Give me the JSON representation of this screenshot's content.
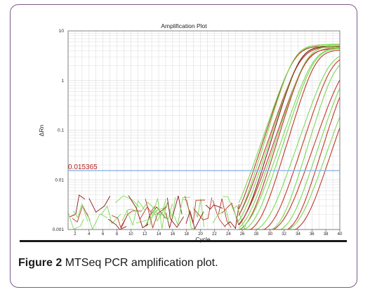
{
  "figure": {
    "caption_label": "Figure 2",
    "caption_text": "MTSeq PCR amplification plot."
  },
  "colors": {
    "green": "#7ed957",
    "red": "#c0392b",
    "darkred": "#8b1a1a",
    "threshold": "#8fb4e3",
    "grid": "#dddddd"
  },
  "chart_data": {
    "type": "line",
    "title": "Amplification Plot",
    "xlabel": "Cycle",
    "ylabel": "ΔRn",
    "xlim": [
      1,
      40
    ],
    "ylim": [
      0.001,
      10
    ],
    "yscale": "log",
    "x_ticks": [
      2,
      4,
      6,
      8,
      10,
      12,
      14,
      16,
      18,
      20,
      22,
      24,
      26,
      28,
      30,
      32,
      34,
      36,
      38,
      40
    ],
    "y_ticks": [
      {
        "value": 10,
        "label": "10"
      },
      {
        "value": 1,
        "label": "1"
      },
      {
        "value": 0.1,
        "label": "0.1"
      },
      {
        "value": 0.01,
        "label": "0.01"
      },
      {
        "value": 0.001,
        "label": "0.001"
      }
    ],
    "threshold": {
      "value": 0.015365,
      "label": "0.015365"
    },
    "grid": true,
    "curves": [
      {
        "color": "green",
        "ct": 27.3,
        "plateau": 5.4
      },
      {
        "color": "red",
        "ct": 27.6,
        "plateau": 5.0
      },
      {
        "color": "green",
        "ct": 27.9,
        "plateau": 5.3
      },
      {
        "color": "red",
        "ct": 28.2,
        "plateau": 4.8
      },
      {
        "color": "green",
        "ct": 28.5,
        "plateau": 5.1
      },
      {
        "color": "darkred",
        "ct": 28.8,
        "plateau": 4.9
      },
      {
        "color": "red",
        "ct": 29.1,
        "plateau": 4.6
      },
      {
        "color": "green",
        "ct": 29.4,
        "plateau": 5.0
      },
      {
        "color": "red",
        "ct": 29.7,
        "plateau": 4.4
      },
      {
        "color": "green",
        "ct": 30.1,
        "plateau": 4.7
      },
      {
        "color": "green",
        "ct": 30.6,
        "plateau": 4.5
      },
      {
        "color": "red",
        "ct": 31.2,
        "plateau": 4.2
      },
      {
        "color": "green",
        "ct": 32.6,
        "plateau": 3.8
      },
      {
        "color": "red",
        "ct": 33.4,
        "plateau": 3.4
      },
      {
        "color": "green",
        "ct": 34.3,
        "plateau": 3.0
      },
      {
        "color": "red",
        "ct": 35.0,
        "plateau": 2.6
      },
      {
        "color": "green",
        "ct": 35.8,
        "plateau": 2.2
      },
      {
        "color": "red",
        "ct": 36.5,
        "plateau": 1.8
      },
      {
        "color": "green",
        "ct": 37.2,
        "plateau": 1.5
      },
      {
        "color": "red",
        "ct": 37.9,
        "plateau": 1.2
      }
    ]
  }
}
